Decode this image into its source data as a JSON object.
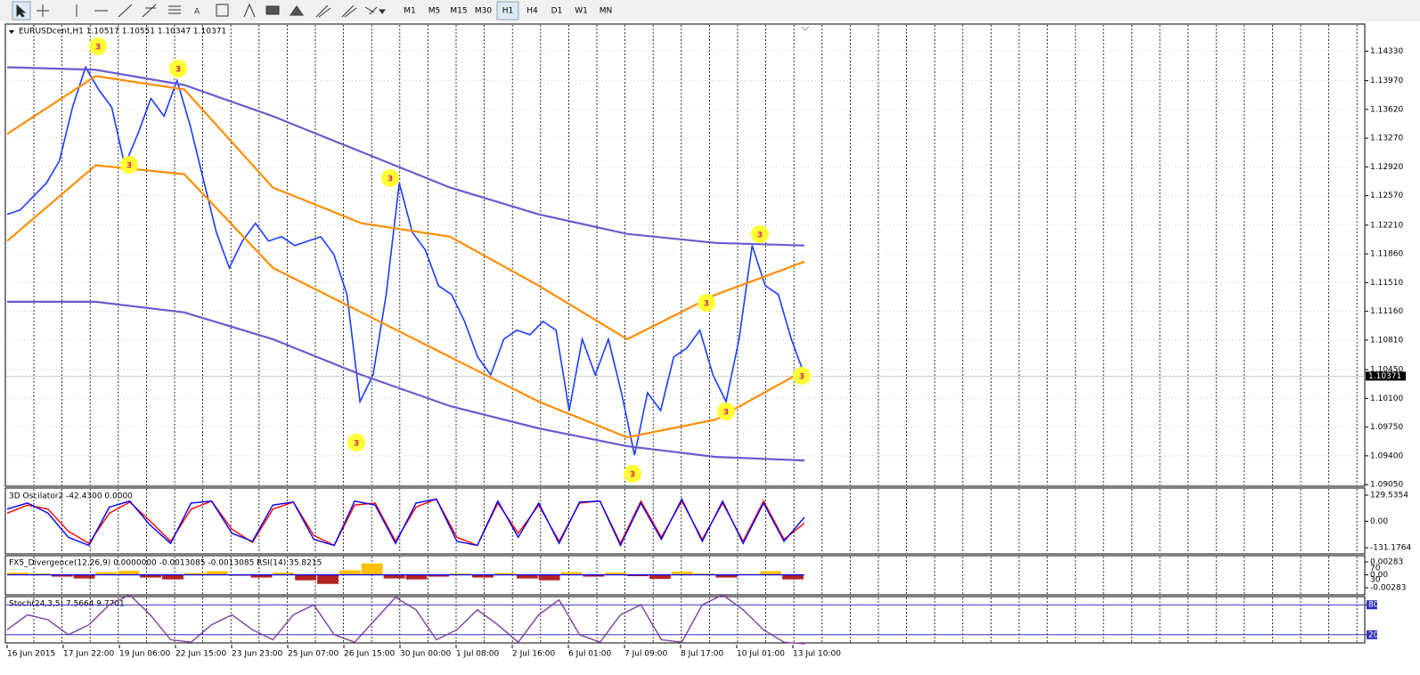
{
  "toolbar": {
    "timeframes": [
      "M1",
      "M5",
      "M15",
      "M30",
      "H1",
      "H4",
      "D1",
      "W1",
      "MN"
    ],
    "active": "H1"
  },
  "chart_data": [
    {
      "type": "line",
      "title": "EURUSDcent,H1 1.10517 1.10551 1.10347 1.10371",
      "ylim": [
        1.0903,
        1.1466
      ],
      "yticks": [
        {
          "value": 1.1433,
          "label": "1.14330"
        },
        {
          "value": 1.1397,
          "label": "1.13970"
        },
        {
          "value": 1.1362,
          "label": "1.13620"
        },
        {
          "value": 1.1327,
          "label": "1.13270"
        },
        {
          "value": 1.1292,
          "label": "1.12920"
        },
        {
          "value": 1.1257,
          "label": "1.12570"
        },
        {
          "value": 1.1221,
          "label": "1.12210"
        },
        {
          "value": 1.1186,
          "label": "1.11860"
        },
        {
          "value": 1.1151,
          "label": "1.11510"
        },
        {
          "value": 1.1116,
          "label": "1.11160"
        },
        {
          "value": 1.1081,
          "label": "1.10810"
        },
        {
          "value": 1.1045,
          "label": "1.10450"
        },
        {
          "value": 1.101,
          "label": "1.10100"
        },
        {
          "value": 1.0975,
          "label": "1.09750"
        },
        {
          "value": 1.094,
          "label": "1.09400"
        },
        {
          "value": 1.0905,
          "label": "1.09050"
        }
      ],
      "x_labels": [
        "16 Jun 2015",
        "17 Jun 22:00",
        "19 Jun 06:00",
        "22 Jun 15:00",
        "23 Jun 23:00",
        "25 Jun 07:00",
        "26 Jun 15:00",
        "30 Jun 00:00",
        "1 Jul 08:00",
        "2 Jul 16:00",
        "6 Jul 01:00",
        "7 Jul 09:00",
        "8 Jul 17:00",
        "10 Jul 01:00",
        "13 Jul 10:00"
      ],
      "last_price": {
        "value": 1.10371,
        "label": "1.10371"
      },
      "wave_marks": [
        "3",
        "3",
        "3",
        "3",
        "3",
        "3",
        "3",
        "3",
        "3",
        "3"
      ],
      "series": [
        {
          "color": "#1a3cff",
          "values": [
            1.12342,
            1.12396,
            1.12559,
            1.12722,
            1.12994,
            1.13646,
            1.14134,
            1.13863,
            1.13646,
            1.12939,
            1.1332,
            1.13754,
            1.13537,
            1.13972,
            1.13428,
            1.12776,
            1.12125,
            1.1169,
            1.12016,
            1.12233,
            1.12016,
            1.1207,
            1.11962,
            1.12016,
            1.1207,
            1.11853,
            1.11364,
            1.1006,
            1.10386,
            1.11364,
            1.12722,
            1.12125,
            1.11907,
            1.11473,
            1.11364,
            1.11038,
            1.10604,
            1.10386,
            1.10821,
            1.1093,
            1.10875,
            1.11038,
            1.1093,
            1.09952,
            1.10821,
            1.10386,
            1.10821,
            1.10169,
            1.09409,
            1.10169,
            1.09952,
            1.10604,
            1.10712,
            1.1093,
            1.10386,
            1.1006,
            1.10821,
            1.11962,
            1.11473,
            1.11364,
            1.10821,
            1.10386
          ]
        },
        {
          "color": "#6a5acd",
          "values": [
            1.14134,
            1.14102,
            1.13917,
            1.13537,
            1.13102,
            1.12668,
            1.12342,
            1.12103,
            1.11994,
            1.11962
          ]
        },
        {
          "color": "#6a5acd",
          "values": [
            1.11277,
            1.11277,
            1.11147,
            1.10821,
            1.10386,
            1.10006,
            1.09735,
            1.09517,
            1.09387,
            1.09343
          ]
        },
        {
          "color": "#ff8c00",
          "values": [
            1.1332,
            1.14026,
            1.13863,
            1.12668,
            1.12233,
            1.1207,
            1.11473,
            1.10821,
            1.11364,
            1.11766
          ]
        },
        {
          "color": "#ff8c00",
          "values": [
            1.12016,
            1.12939,
            1.12831,
            1.1169,
            1.11147,
            1.10604,
            1.1006,
            1.09626,
            1.09843,
            1.10441
          ]
        }
      ]
    },
    {
      "type": "line",
      "title": "3D Oscilator2 -42.4300 0.0000",
      "ylim": [
        -131.1764,
        129.5354
      ],
      "yticks": [
        {
          "value": 129.5354,
          "label": "129.5354"
        },
        {
          "value": 0,
          "label": "0.00"
        },
        {
          "value": -131.1764,
          "label": "-131.1764"
        }
      ],
      "series": [
        {
          "color": "#ff0000",
          "values": [
            40,
            80,
            60,
            -50,
            -110,
            40,
            95,
            0,
            -100,
            60,
            100,
            -40,
            -105,
            60,
            95,
            -70,
            -120,
            80,
            90,
            -100,
            70,
            110,
            -80,
            -120,
            90,
            -60,
            80,
            -100,
            90,
            100,
            -110,
            100,
            -80,
            100,
            -90,
            90,
            -100,
            100,
            -90,
            -10
          ]
        },
        {
          "color": "#0000ff",
          "values": [
            60,
            90,
            40,
            -80,
            -120,
            70,
            100,
            -20,
            -110,
            90,
            100,
            -60,
            -100,
            80,
            95,
            -90,
            -120,
            100,
            80,
            -110,
            90,
            110,
            -100,
            -120,
            100,
            -80,
            90,
            -110,
            95,
            100,
            -120,
            90,
            -90,
            110,
            -100,
            100,
            -110,
            90,
            -100,
            20
          ]
        }
      ]
    },
    {
      "type": "bar",
      "title": "FX5_Divergence(12,26,9) 0.0000000 -0.0013085 -0.0013085 RSI(14) 35.8215",
      "ylim": [
        -0.00283,
        0.00283
      ],
      "yticks": [
        {
          "value": 0.00283,
          "label": "0.00283"
        },
        {
          "value": 0,
          "label": "0.00"
        },
        {
          "value": -0.00283,
          "label": "-0.00283"
        }
      ],
      "rsi_levels": [
        70,
        30
      ],
      "series": [
        {
          "color": "#b22222",
          "values": [
            0.0005,
            0.0003,
            -0.0004,
            -0.0008,
            0.0006,
            0.0009,
            -0.0006,
            -0.001,
            0.0004,
            0.0008,
            -0.0002,
            -0.0006,
            0.0005,
            -0.0012,
            -0.002,
            0.001,
            0.0025,
            -0.0008,
            -0.001,
            -0.0004,
            0.0003,
            -0.0006,
            0.0004,
            -0.0008,
            -0.0012,
            0.0006,
            -0.0004,
            0.0005,
            -0.0003,
            -0.0009,
            0.0007,
            0.0003,
            -0.0006,
            0.0002,
            0.0008,
            -0.001
          ]
        }
      ]
    },
    {
      "type": "line",
      "title": "Stoch(24,3,5) 7.5664 9.7701",
      "ylim": [
        0,
        100
      ],
      "yticks": [
        80,
        20
      ],
      "series": [
        {
          "color": "#7b3f9e",
          "values": [
            30,
            60,
            50,
            20,
            40,
            80,
            100,
            60,
            10,
            5,
            40,
            60,
            30,
            10,
            60,
            80,
            20,
            5,
            50,
            95,
            70,
            10,
            30,
            70,
            40,
            5,
            60,
            90,
            20,
            5,
            60,
            80,
            10,
            5,
            80,
            100,
            70,
            30,
            5,
            2
          ]
        }
      ]
    }
  ]
}
